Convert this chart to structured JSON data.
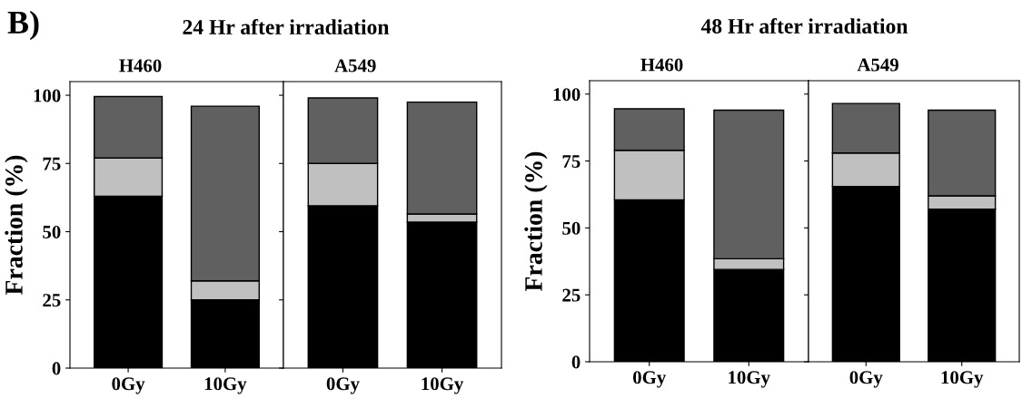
{
  "chart_data": [
    {
      "type": "bar",
      "stacked": true,
      "title": "24 Hr after irradiation",
      "subtitle": "H460",
      "ylabel": "Fraction (%)",
      "annotations": [
        "B)"
      ],
      "categories": [
        "0Gy",
        "10Gy"
      ],
      "ylim": [
        0,
        105
      ],
      "yticks": [
        0,
        25,
        50,
        75,
        100
      ],
      "series": [
        {
          "color": "#000000",
          "values": [
            63,
            25
          ]
        },
        {
          "color": "#c0c0c0",
          "values": [
            14,
            7
          ]
        },
        {
          "color": "#606060",
          "values": [
            22.5,
            64
          ]
        }
      ]
    },
    {
      "type": "bar",
      "stacked": true,
      "subtitle": "A549",
      "categories": [
        "0Gy",
        "10Gy"
      ],
      "ylim": [
        0,
        105
      ],
      "yticks": [
        {
          "value": 0,
          "label": null
        },
        {
          "value": 25,
          "label": null
        },
        {
          "value": 50,
          "label": null
        },
        {
          "value": 75,
          "label": null
        },
        {
          "value": 100,
          "label": null
        }
      ],
      "tick_labels": "x",
      "series": [
        {
          "color": "#000000",
          "values": [
            59.5,
            53.5
          ]
        },
        {
          "color": "#c0c0c0",
          "values": [
            15.5,
            3
          ]
        },
        {
          "color": "#606060",
          "values": [
            24,
            41
          ]
        }
      ]
    },
    {
      "type": "bar",
      "stacked": true,
      "title": "48 Hr after irradiation",
      "subtitle": "H460",
      "ylabel": "Fraction (%)",
      "categories": [
        "0Gy",
        "10Gy"
      ],
      "ylim": [
        0,
        105
      ],
      "yticks": [
        0,
        25,
        50,
        75,
        100
      ],
      "series": [
        {
          "color": "#000000",
          "values": [
            60.5,
            34.5
          ]
        },
        {
          "color": "#c0c0c0",
          "values": [
            18.5,
            4
          ]
        },
        {
          "color": "#606060",
          "values": [
            15.5,
            55.5
          ]
        }
      ]
    },
    {
      "type": "bar",
      "stacked": true,
      "subtitle": "A549",
      "categories": [
        "0Gy",
        "10Gy"
      ],
      "ylim": [
        0,
        105
      ],
      "yticks": [
        {
          "value": 0,
          "label": null
        },
        {
          "value": 25,
          "label": null
        },
        {
          "value": 50,
          "label": null
        },
        {
          "value": 75,
          "label": null
        },
        {
          "value": 100,
          "label": null
        }
      ],
      "tick_labels": "x",
      "series": [
        {
          "color": "#000000",
          "values": [
            65.5,
            57
          ]
        },
        {
          "color": "#c0c0c0",
          "values": [
            12.5,
            5
          ]
        },
        {
          "color": "#606060",
          "values": [
            18.5,
            32
          ]
        }
      ]
    }
  ]
}
